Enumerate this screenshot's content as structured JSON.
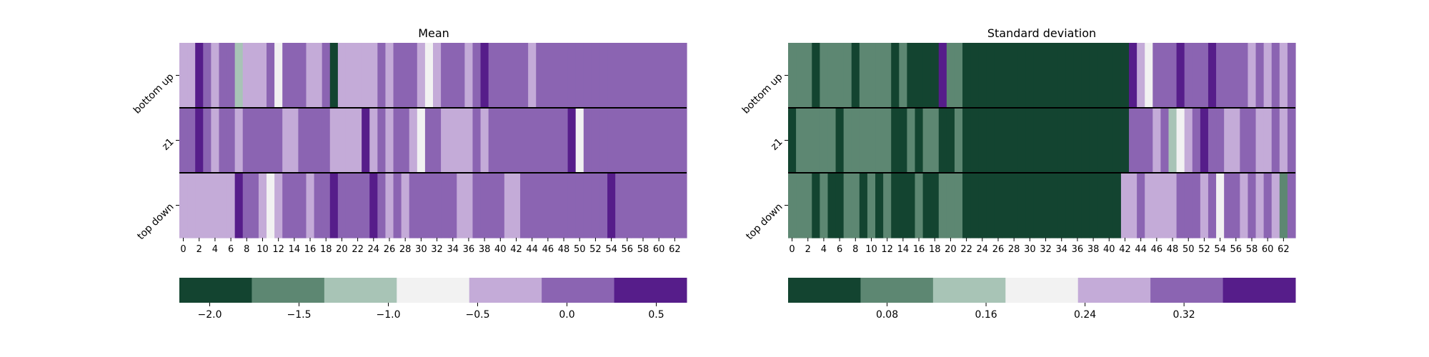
{
  "palette": [
    "#134430",
    "#5d8772",
    "#a8c4b6",
    "#f2f2f2",
    "#c4abd8",
    "#8b64b2",
    "#561d8a"
  ],
  "chart_data": [
    {
      "type": "heatmap",
      "title": "Mean",
      "rows": [
        "bottom up",
        "z1",
        "top down"
      ],
      "x_ticks": [
        0,
        2,
        4,
        6,
        8,
        10,
        12,
        14,
        16,
        18,
        20,
        22,
        24,
        26,
        28,
        30,
        32,
        34,
        36,
        38,
        40,
        42,
        44,
        46,
        48,
        50,
        52,
        54,
        56,
        58,
        60,
        62
      ],
      "n_columns": 64,
      "cell_bins": [
        [
          4,
          4,
          6,
          5,
          4,
          5,
          5,
          2,
          4,
          4,
          4,
          5,
          3,
          5,
          5,
          5,
          4,
          4,
          5,
          0,
          4,
          4,
          4,
          4,
          4,
          5,
          4,
          5,
          5,
          5,
          4,
          3,
          4,
          5,
          5,
          5,
          4,
          5,
          6,
          5,
          5,
          5,
          5,
          5,
          4,
          5,
          5,
          5,
          5,
          5,
          5,
          5,
          5,
          5,
          5,
          5,
          5,
          5,
          5,
          5,
          5,
          5,
          5,
          5
        ],
        [
          5,
          5,
          6,
          5,
          4,
          5,
          5,
          4,
          5,
          5,
          5,
          5,
          5,
          4,
          4,
          5,
          5,
          5,
          5,
          4,
          4,
          4,
          4,
          6,
          4,
          5,
          4,
          5,
          5,
          4,
          3,
          5,
          5,
          4,
          4,
          4,
          4,
          5,
          4,
          5,
          5,
          5,
          5,
          5,
          5,
          5,
          5,
          5,
          5,
          6,
          3,
          5,
          5,
          5,
          5,
          5,
          5,
          5,
          5,
          5,
          5,
          5,
          5,
          5
        ],
        [
          4,
          4,
          4,
          4,
          4,
          4,
          4,
          6,
          5,
          5,
          4,
          3,
          4,
          5,
          5,
          5,
          4,
          5,
          5,
          6,
          5,
          5,
          5,
          5,
          6,
          5,
          4,
          5,
          4,
          5,
          5,
          5,
          5,
          5,
          5,
          4,
          4,
          5,
          5,
          5,
          5,
          4,
          4,
          5,
          5,
          5,
          5,
          5,
          5,
          5,
          5,
          5,
          5,
          5,
          6,
          5,
          5,
          5,
          5,
          5,
          5,
          5,
          5,
          5
        ]
      ],
      "colorbar": {
        "range": [
          -2.17,
          0.67
        ],
        "ticks": [
          -2.0,
          -1.5,
          -1.0,
          -0.5,
          0.0,
          0.5
        ],
        "tick_labels": [
          "−2.0",
          "−1.5",
          "−1.0",
          "−0.5",
          "0.0",
          "0.5"
        ]
      }
    },
    {
      "type": "heatmap",
      "title": "Standard deviation",
      "rows": [
        "bottom up",
        "z1",
        "top down"
      ],
      "x_ticks": [
        0,
        2,
        4,
        6,
        8,
        10,
        12,
        14,
        16,
        18,
        20,
        22,
        24,
        26,
        28,
        30,
        32,
        34,
        36,
        38,
        40,
        42,
        44,
        46,
        48,
        50,
        52,
        54,
        56,
        58,
        60,
        62
      ],
      "n_columns": 64,
      "cell_bins": [
        [
          1,
          1,
          1,
          0,
          1,
          1,
          1,
          1,
          0,
          1,
          1,
          1,
          1,
          0,
          1,
          0,
          0,
          0,
          0,
          6,
          1,
          1,
          0,
          0,
          0,
          0,
          0,
          0,
          0,
          0,
          0,
          0,
          0,
          0,
          0,
          0,
          0,
          0,
          0,
          0,
          0,
          0,
          0,
          6,
          4,
          3,
          5,
          5,
          5,
          6,
          5,
          5,
          5,
          6,
          5,
          5,
          5,
          5,
          4,
          5,
          4,
          5,
          4,
          5
        ],
        [
          0,
          1,
          1,
          1,
          1,
          1,
          0,
          1,
          1,
          1,
          1,
          1,
          1,
          0,
          0,
          1,
          0,
          1,
          1,
          0,
          0,
          1,
          0,
          0,
          0,
          0,
          0,
          0,
          0,
          0,
          0,
          0,
          0,
          0,
          0,
          0,
          0,
          0,
          0,
          0,
          0,
          0,
          0,
          5,
          5,
          5,
          4,
          5,
          2,
          3,
          4,
          5,
          6,
          5,
          5,
          4,
          4,
          5,
          5,
          4,
          4,
          5,
          4,
          5
        ],
        [
          1,
          1,
          1,
          0,
          1,
          0,
          0,
          1,
          1,
          0,
          1,
          0,
          1,
          0,
          0,
          0,
          1,
          0,
          0,
          1,
          1,
          1,
          0,
          0,
          0,
          0,
          0,
          0,
          0,
          0,
          0,
          0,
          0,
          0,
          0,
          0,
          0,
          0,
          0,
          0,
          0,
          0,
          4,
          4,
          5,
          4,
          4,
          4,
          4,
          5,
          5,
          5,
          4,
          5,
          3,
          5,
          5,
          4,
          5,
          4,
          5,
          4,
          1,
          5
        ]
      ],
      "colorbar": {
        "range": [
          0.0,
          0.41
        ],
        "ticks": [
          0.08,
          0.16,
          0.24,
          0.32
        ],
        "tick_labels": [
          "0.08",
          "0.16",
          "0.24",
          "0.32"
        ]
      }
    }
  ]
}
